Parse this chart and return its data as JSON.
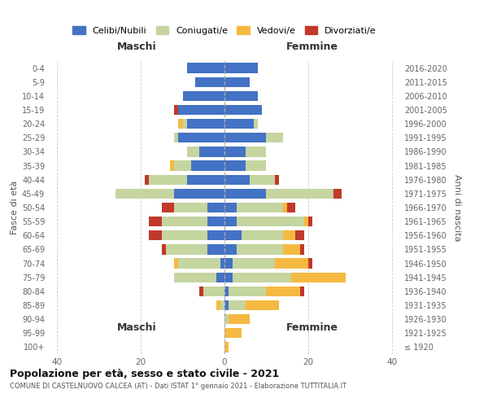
{
  "age_groups": [
    "100+",
    "95-99",
    "90-94",
    "85-89",
    "80-84",
    "75-79",
    "70-74",
    "65-69",
    "60-64",
    "55-59",
    "50-54",
    "45-49",
    "40-44",
    "35-39",
    "30-34",
    "25-29",
    "20-24",
    "15-19",
    "10-14",
    "5-9",
    "0-4"
  ],
  "birth_years": [
    "≤ 1920",
    "1921-1925",
    "1926-1930",
    "1931-1935",
    "1936-1940",
    "1941-1945",
    "1946-1950",
    "1951-1955",
    "1956-1960",
    "1961-1965",
    "1966-1970",
    "1971-1975",
    "1976-1980",
    "1981-1985",
    "1986-1990",
    "1991-1995",
    "1996-2000",
    "2001-2005",
    "2006-2010",
    "2011-2015",
    "2016-2020"
  ],
  "maschi_celibe": [
    0,
    0,
    0,
    0,
    0,
    2,
    1,
    4,
    4,
    4,
    4,
    12,
    9,
    8,
    6,
    11,
    9,
    11,
    10,
    7,
    9
  ],
  "maschi_coniugato": [
    0,
    0,
    0,
    1,
    5,
    10,
    10,
    10,
    11,
    11,
    8,
    14,
    9,
    4,
    3,
    1,
    1,
    0,
    0,
    0,
    0
  ],
  "maschi_vedovo": [
    0,
    0,
    0,
    1,
    0,
    0,
    1,
    0,
    0,
    0,
    0,
    0,
    0,
    1,
    0,
    0,
    1,
    0,
    0,
    0,
    0
  ],
  "maschi_divorziato": [
    0,
    0,
    0,
    0,
    1,
    0,
    0,
    1,
    3,
    3,
    3,
    0,
    1,
    0,
    0,
    0,
    0,
    1,
    0,
    0,
    0
  ],
  "femmine_celibe": [
    0,
    0,
    0,
    1,
    1,
    2,
    2,
    3,
    4,
    3,
    3,
    10,
    6,
    5,
    5,
    10,
    7,
    9,
    8,
    6,
    8
  ],
  "femmine_coniugato": [
    0,
    0,
    1,
    4,
    9,
    14,
    10,
    11,
    10,
    16,
    11,
    16,
    6,
    5,
    5,
    4,
    1,
    0,
    0,
    0,
    0
  ],
  "femmine_vedovo": [
    1,
    4,
    5,
    8,
    8,
    13,
    8,
    4,
    3,
    1,
    1,
    0,
    0,
    0,
    0,
    0,
    0,
    0,
    0,
    0,
    0
  ],
  "femmine_divorziato": [
    0,
    0,
    0,
    0,
    1,
    0,
    1,
    1,
    2,
    1,
    2,
    2,
    1,
    0,
    0,
    0,
    0,
    0,
    0,
    0,
    0
  ],
  "colors": {
    "celibe": "#4472c4",
    "coniugato": "#c5d5a0",
    "vedovo": "#f5b942",
    "divorziato": "#c0392b"
  },
  "title": "Popolazione per età, sesso e stato civile - 2021",
  "subtitle": "COMUNE DI CASTELNUOVO CALCEA (AT) - Dati ISTAT 1° gennaio 2021 - Elaborazione TUTTITALIA.IT",
  "xlabel_left": "Maschi",
  "xlabel_right": "Femmine",
  "ylabel_left": "Fasce di età",
  "ylabel_right": "Anni di nascita",
  "xlim": 42,
  "xticks": [
    -40,
    -20,
    0,
    20,
    40
  ],
  "legend_labels": [
    "Celibi/Nubili",
    "Coniugati/e",
    "Vedovi/e",
    "Divorziati/e"
  ],
  "background_color": "#ffffff",
  "grid_color": "#cccccc"
}
